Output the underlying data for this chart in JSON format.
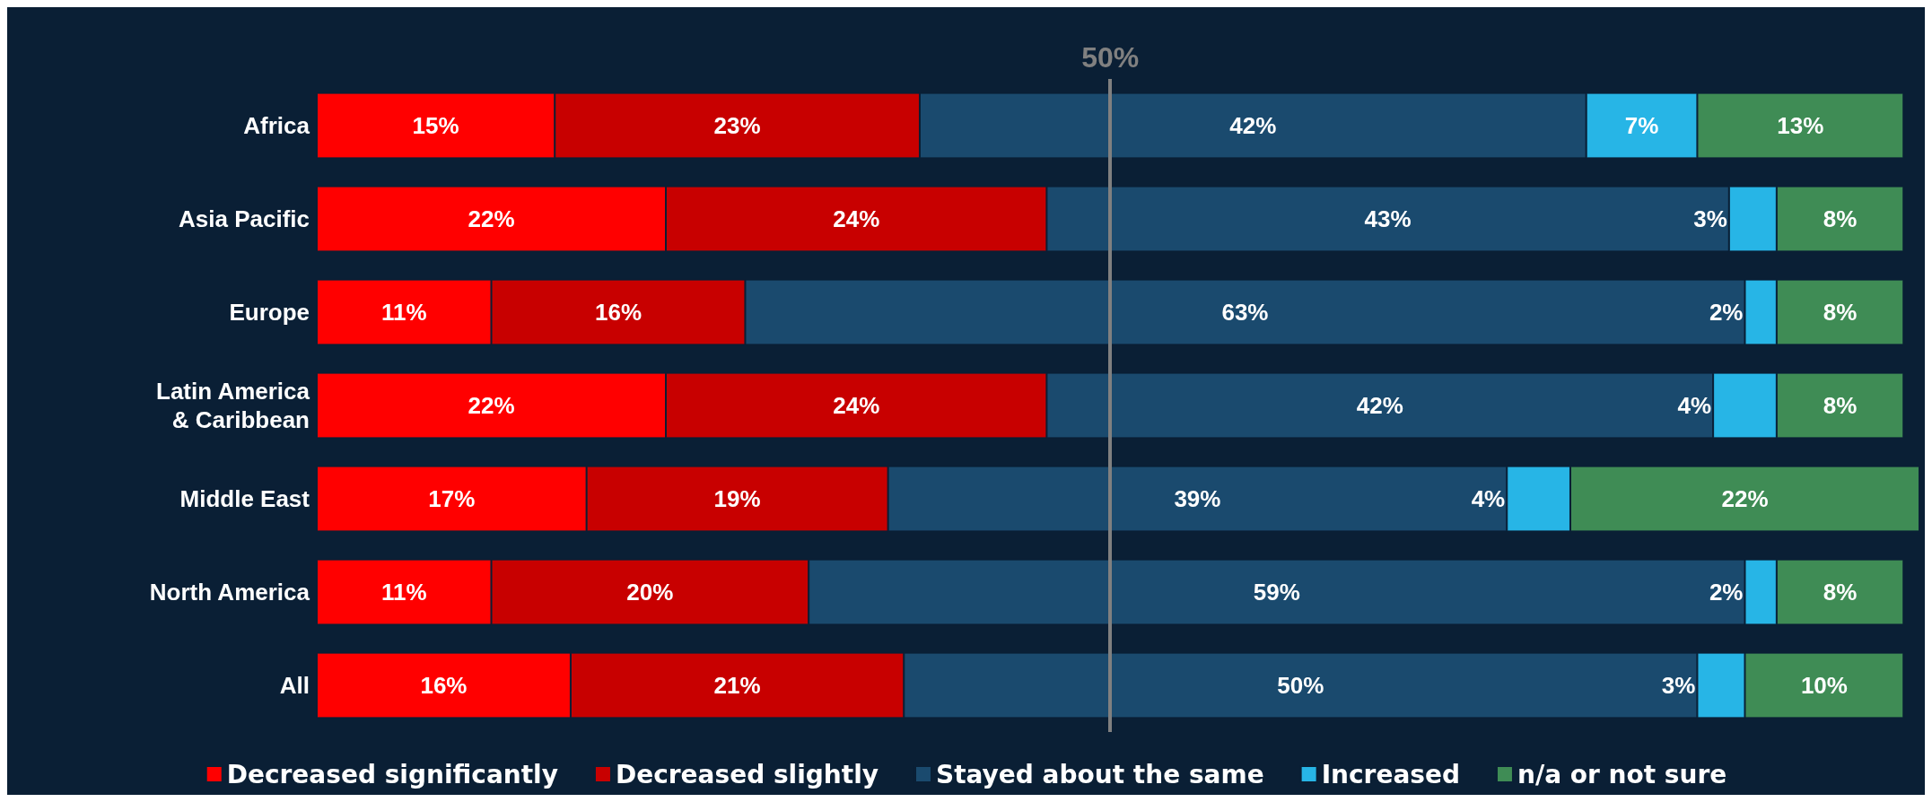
{
  "chart_data": {
    "type": "bar",
    "orientation": "horizontal",
    "stacked": true,
    "legend": "bottom",
    "tick_labels": "y",
    "categories": [
      "Africa",
      "Asia Pacific",
      "Europe",
      "Latin America\n& Caribbean",
      "Middle East",
      "North America",
      "All"
    ],
    "series": [
      {
        "name": "Decreased significantly",
        "color": "#ff0000",
        "values": [
          15,
          22,
          11,
          22,
          17,
          11,
          16
        ],
        "value_labels": [
          "15%",
          "22%",
          "11%",
          "22%",
          "17%",
          "11%",
          "16%"
        ]
      },
      {
        "name": "Decreased slightly",
        "color": "#c80000",
        "values": [
          23,
          24,
          16,
          24,
          19,
          20,
          21
        ],
        "value_labels": [
          "23%",
          "24%",
          "16%",
          "24%",
          "19%",
          "20%",
          "21%"
        ]
      },
      {
        "name": "Stayed about the same",
        "color": "#1a4a6e",
        "values": [
          42,
          43,
          63,
          42,
          39,
          59,
          50
        ],
        "value_labels": [
          "42%",
          "43%",
          "63%",
          "42%",
          "39%",
          "59%",
          "50%"
        ]
      },
      {
        "name": "Increased",
        "color": "#27b5e6",
        "values": [
          7,
          3,
          2,
          4,
          4,
          2,
          3
        ],
        "value_labels": [
          "7%",
          "3%",
          "2%",
          "4%",
          "4%",
          "2%",
          "3%"
        ]
      },
      {
        "name": "n/a or not sure",
        "color": "#3f8c55",
        "values": [
          13,
          8,
          8,
          8,
          22,
          8,
          10
        ],
        "value_labels": [
          "13%",
          "8%",
          "8%",
          "8%",
          "22%",
          "8%",
          "10%"
        ]
      }
    ],
    "ref_lines": [
      {
        "axis": "x",
        "value": 50,
        "label": "50%",
        "color": "#808080"
      }
    ]
  }
}
